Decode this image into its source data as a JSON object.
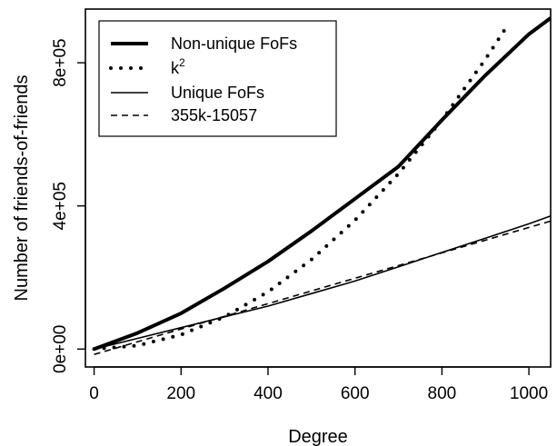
{
  "chart_data": {
    "type": "line",
    "xlabel": "Degree",
    "ylabel": "Number of friends-of-friends",
    "xlim": [
      -20,
      1050
    ],
    "ylim": [
      -50000,
      950000
    ],
    "x_ticks": [
      0,
      200,
      400,
      600,
      800,
      1000
    ],
    "x_tick_labels": [
      "0",
      "200",
      "400",
      "600",
      "800",
      "1000"
    ],
    "y_ticks": [
      0,
      400000,
      800000
    ],
    "y_tick_labels": [
      "0e+00",
      "4e+05",
      "8e+05"
    ],
    "grid": false,
    "legend_position": "top-left",
    "series": [
      {
        "name": "Non-unique FoFs",
        "style": "thick-solid",
        "color": "#000000",
        "x": [
          0,
          100,
          200,
          300,
          400,
          500,
          600,
          700,
          800,
          900,
          1000,
          1050
        ],
        "y": [
          0,
          45000,
          100000,
          170000,
          245000,
          330000,
          420000,
          510000,
          640000,
          765000,
          880000,
          925000
        ]
      },
      {
        "name": "k²",
        "name_base": "k",
        "name_sup": "2",
        "style": "dotted",
        "color": "#000000",
        "x": [
          0,
          100,
          200,
          300,
          400,
          500,
          600,
          700,
          800,
          900,
          950
        ],
        "y": [
          0,
          10000,
          40000,
          90000,
          160000,
          250000,
          360000,
          490000,
          640000,
          810000,
          902500
        ]
      },
      {
        "name": "Unique FoFs",
        "style": "thin-solid",
        "color": "#000000",
        "x": [
          0,
          100,
          200,
          300,
          400,
          500,
          600,
          700,
          800,
          900,
          1000,
          1050
        ],
        "y": [
          0,
          30000,
          60000,
          90000,
          120000,
          155000,
          190000,
          230000,
          270000,
          310000,
          350000,
          372000
        ]
      },
      {
        "name": "355k-15057",
        "style": "dashed",
        "color": "#000000",
        "x": [
          0,
          1050
        ],
        "y": [
          -15057,
          357693
        ]
      }
    ]
  }
}
